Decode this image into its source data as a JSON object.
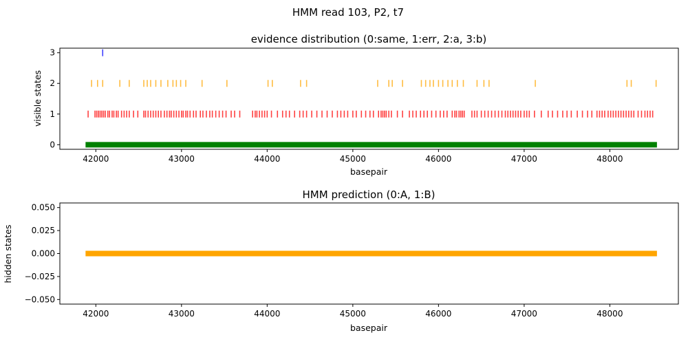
{
  "figure": {
    "suptitle": "HMM read 103, P2, t7"
  },
  "chart_data": [
    {
      "type": "scatter",
      "title": "evidence distribution (0:same, 1:err, 2:a, 3:b)",
      "xlabel": "basepair",
      "ylabel": "visible states",
      "xlim": [
        41580,
        48800
      ],
      "ylim": [
        -0.15,
        3.15
      ],
      "x_ticks": [
        42000,
        43000,
        44000,
        45000,
        46000,
        47000,
        48000
      ],
      "y_ticks": [
        0,
        1,
        2,
        3
      ],
      "x_tick_labels": [
        "42000",
        "43000",
        "44000",
        "45000",
        "46000",
        "47000",
        "48000"
      ],
      "y_tick_labels": [
        "0",
        "1",
        "2",
        "3"
      ],
      "marker": "vertical-line",
      "series": [
        {
          "state": 0,
          "color": "#008000",
          "range": [
            41880,
            48550
          ]
        },
        {
          "state": 1,
          "color": "#ff0000",
          "x": [
            41910,
            41990,
            42010,
            42030,
            42050,
            42070,
            42090,
            42110,
            42140,
            42160,
            42190,
            42210,
            42240,
            42260,
            42300,
            42330,
            42360,
            42390,
            42440,
            42490,
            42560,
            42580,
            42610,
            42640,
            42670,
            42700,
            42730,
            42760,
            42800,
            42830,
            42860,
            42880,
            42910,
            42940,
            42970,
            43000,
            43020,
            43050,
            43070,
            43100,
            43140,
            43170,
            43220,
            43250,
            43290,
            43330,
            43360,
            43400,
            43440,
            43480,
            43520,
            43580,
            43620,
            43680,
            43830,
            43860,
            43880,
            43910,
            43940,
            43970,
            44000,
            44050,
            44120,
            44180,
            44220,
            44260,
            44320,
            44380,
            44420,
            44460,
            44520,
            44580,
            44640,
            44700,
            44760,
            44820,
            44860,
            44900,
            44940,
            45000,
            45040,
            45100,
            45150,
            45200,
            45240,
            45300,
            45330,
            45350,
            45370,
            45390,
            45420,
            45450,
            45520,
            45580,
            45660,
            45700,
            45740,
            45790,
            45830,
            45870,
            45920,
            45970,
            46020,
            46060,
            46100,
            46160,
            46190,
            46210,
            46240,
            46260,
            46280,
            46300,
            46390,
            46420,
            46450,
            46500,
            46540,
            46580,
            46620,
            46660,
            46700,
            46740,
            46780,
            46810,
            46840,
            46870,
            46900,
            46930,
            46960,
            47000,
            47030,
            47060,
            47120,
            47200,
            47280,
            47330,
            47390,
            47450,
            47500,
            47550,
            47620,
            47680,
            47740,
            47790,
            47850,
            47880,
            47910,
            47940,
            47980,
            48010,
            48040,
            48070,
            48100,
            48130,
            48160,
            48190,
            48220,
            48250,
            48280,
            48330,
            48370,
            48410,
            48440,
            48470,
            48500
          ]
        },
        {
          "state": 2,
          "color": "#ffa500",
          "x": [
            41950,
            42020,
            42080,
            42280,
            42390,
            42560,
            42600,
            42640,
            42700,
            42760,
            42840,
            42900,
            42940,
            42990,
            43050,
            43240,
            43530,
            44010,
            44060,
            44390,
            44460,
            45290,
            45420,
            45460,
            45580,
            45800,
            45850,
            45900,
            45940,
            46000,
            46050,
            46110,
            46160,
            46220,
            46290,
            46450,
            46530,
            46590,
            47130,
            48200,
            48250,
            48540
          ]
        },
        {
          "state": 3,
          "color": "#0000ff",
          "x": [
            42080
          ]
        }
      ]
    },
    {
      "type": "line",
      "title": "HMM prediction (0:A, 1:B)",
      "xlabel": "basepair",
      "ylabel": "hidden states",
      "xlim": [
        41580,
        48800
      ],
      "ylim": [
        -0.055,
        0.055
      ],
      "x_ticks": [
        42000,
        43000,
        44000,
        45000,
        46000,
        47000,
        48000
      ],
      "y_ticks": [
        0.05,
        0.025,
        0.0,
        -0.025,
        -0.05
      ],
      "x_tick_labels": [
        "42000",
        "43000",
        "44000",
        "45000",
        "46000",
        "47000",
        "48000"
      ],
      "y_tick_labels": [
        "0.050",
        "0.025",
        "0.000",
        "−0.025",
        "−0.050"
      ],
      "series": [
        {
          "state": 0,
          "color": "#ffa500",
          "range": [
            41880,
            48550
          ],
          "value": 0
        }
      ]
    }
  ]
}
